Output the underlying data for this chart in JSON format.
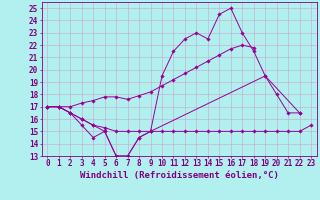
{
  "xlabel": "Windchill (Refroidissement éolien,°C)",
  "xlim": [
    -0.5,
    23.5
  ],
  "ylim": [
    13,
    25.5
  ],
  "yticks": [
    13,
    14,
    15,
    16,
    17,
    18,
    19,
    20,
    21,
    22,
    23,
    24,
    25
  ],
  "xticks": [
    0,
    1,
    2,
    3,
    4,
    5,
    6,
    7,
    8,
    9,
    10,
    11,
    12,
    13,
    14,
    15,
    16,
    17,
    18,
    19,
    20,
    21,
    22,
    23
  ],
  "bg_color": "#b2efef",
  "grid_color": "#c8a8c8",
  "line_color": "#990099",
  "font_color": "#800080",
  "tick_fontsize": 5.5,
  "label_fontsize": 6.5,
  "series": [
    {
      "x": [
        0,
        1,
        2,
        3,
        4,
        5,
        6,
        7,
        8,
        9,
        10,
        11,
        12,
        13,
        14,
        15,
        16,
        17,
        18,
        19,
        20,
        21,
        22,
        23
      ],
      "y": [
        17,
        17,
        16.5,
        16,
        15.5,
        15.3,
        15,
        15,
        15,
        15,
        15,
        15,
        15,
        15,
        15,
        15,
        15,
        15,
        15,
        15,
        15,
        15,
        15,
        15.5
      ]
    },
    {
      "x": [
        0,
        1,
        2,
        3,
        4,
        5,
        6,
        7,
        8,
        9,
        10,
        11,
        12,
        13,
        14,
        15,
        16,
        17,
        18,
        19,
        20,
        21,
        22,
        23
      ],
      "y": [
        17,
        17,
        17,
        17.3,
        17.5,
        17.8,
        17.8,
        17.6,
        17.9,
        18.2,
        18.7,
        19.2,
        19.7,
        20.2,
        20.7,
        21.2,
        21.7,
        22.0,
        21.8,
        null,
        null,
        null,
        null,
        null
      ]
    },
    {
      "x": [
        0,
        1,
        2,
        3,
        4,
        5,
        6,
        7,
        8,
        9,
        19,
        22
      ],
      "y": [
        17,
        17,
        16.5,
        15.5,
        14.5,
        15,
        13,
        13,
        14.5,
        15,
        19.5,
        16.5
      ]
    },
    {
      "x": [
        0,
        1,
        2,
        3,
        4,
        5,
        6,
        7,
        8,
        9,
        10,
        11,
        12,
        13,
        14,
        15,
        16,
        17,
        18,
        19,
        20,
        21,
        22
      ],
      "y": [
        17,
        17,
        16.5,
        16,
        15.5,
        15,
        13,
        13,
        14.5,
        15,
        19.5,
        21.5,
        22.5,
        23,
        22.5,
        24.5,
        25,
        23,
        21.5,
        19.5,
        18,
        16.5,
        16.5
      ]
    }
  ]
}
